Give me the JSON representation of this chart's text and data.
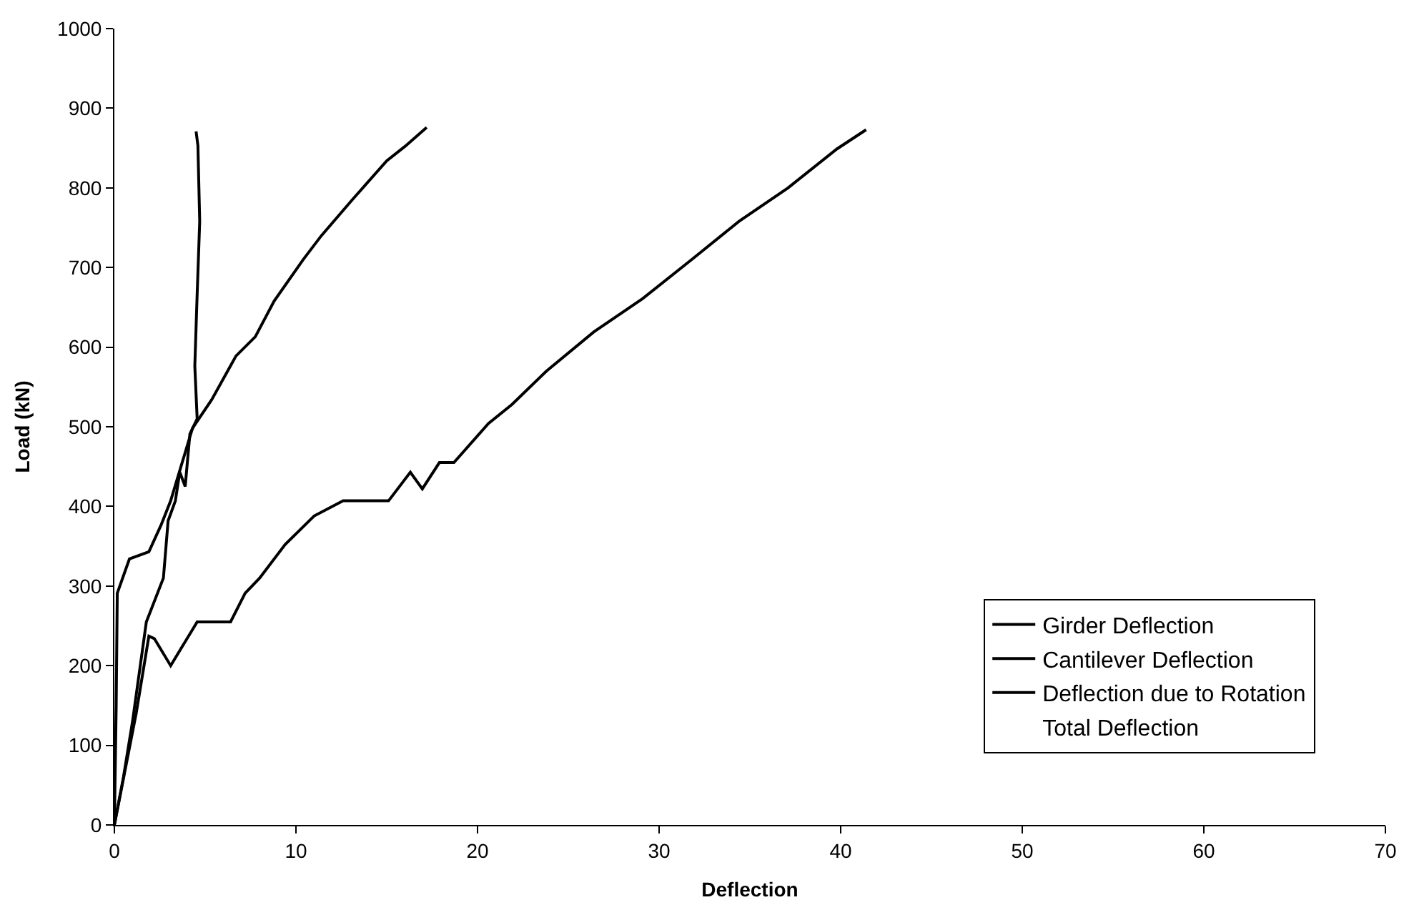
{
  "chart_data": {
    "type": "line",
    "xlabel": "Deflection",
    "ylabel": "Load (kN)",
    "xlim": [
      0,
      70
    ],
    "xticks": [
      0,
      10,
      20,
      30,
      40,
      50,
      60,
      70
    ],
    "ylim": [
      0,
      1000
    ],
    "yticks": [
      0,
      100,
      200,
      300,
      400,
      500,
      600,
      700,
      800,
      900,
      1000
    ],
    "legend": "bottom right",
    "marker": "none",
    "line_style": "solid",
    "series": [
      {
        "name": "Girder Deflection",
        "color": "#000000",
        "x": [
          0,
          0.5,
          1.0,
          1.76,
          2.7,
          2.96,
          3.36,
          3.6,
          3.9,
          4.16,
          4.56,
          4.43,
          4.56,
          4.7,
          4.6,
          4.5
        ],
        "values": [
          0,
          60,
          130,
          255,
          310,
          382,
          407,
          443,
          425,
          491,
          510,
          576,
          667,
          758,
          853,
          871
        ]
      },
      {
        "name": "Cantilever Deflection",
        "color": "#000000",
        "x": [
          0,
          0.1,
          0.16,
          0.83,
          1.9,
          2.56,
          3.1,
          4.3,
          5.36,
          6.7,
          7.76,
          8.8,
          10.4,
          11.4,
          13.1,
          15.0,
          16.0,
          17.2
        ],
        "values": [
          0,
          150,
          291,
          334,
          343,
          376,
          407,
          498,
          534,
          589,
          613,
          658,
          710,
          740,
          785,
          834,
          852,
          876
        ]
      },
      {
        "name": "Deflection due to Rotation",
        "color": "#000000",
        "x": [
          0,
          0.6,
          1.2,
          1.9,
          2.2,
          3.1,
          4.56,
          6.4,
          7.2,
          8.0,
          9.4,
          11.0,
          12.6,
          15.1,
          16.3,
          16.96,
          17.9,
          18.7,
          20.6,
          21.9,
          23.8,
          26.4,
          29.1,
          31.8,
          34.4,
          37.1,
          39.8,
          41.4
        ],
        "values": [
          0,
          70,
          140,
          237,
          234,
          200,
          255,
          255,
          291,
          310,
          352,
          388,
          407,
          407,
          443,
          422,
          455,
          455,
          504,
          528,
          570,
          619,
          661,
          710,
          758,
          800,
          849,
          873
        ]
      },
      {
        "name": "Total Deflection"
      }
    ]
  }
}
